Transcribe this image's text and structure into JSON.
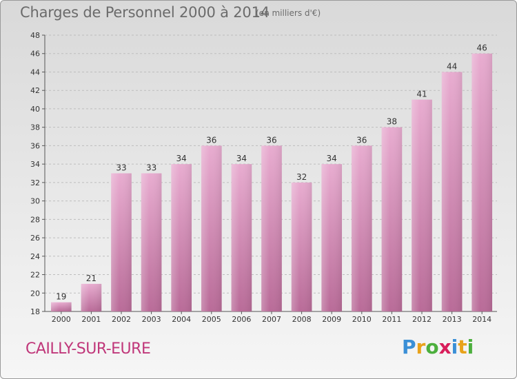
{
  "header": {
    "title": "Charges de Personnel 2000 à 2014",
    "unit": "(en milliers d'€)"
  },
  "footer": {
    "commune": "CAILLY-SUR-EURE",
    "logo_letters": [
      "P",
      "r",
      "o",
      "x",
      "i",
      "t",
      "i"
    ],
    "logo_colors": [
      "#3a8fd6",
      "#e8a21a",
      "#4caf3d",
      "#d81e5b",
      "#3a8fd6",
      "#e8a21a",
      "#4caf3d"
    ]
  },
  "chart_data": {
    "type": "bar",
    "title": "Charges de Personnel 2000 à 2014",
    "subtitle": "(en milliers d'€)",
    "xlabel": "",
    "ylabel": "",
    "categories": [
      "2000",
      "2001",
      "2002",
      "2003",
      "2004",
      "2005",
      "2006",
      "2007",
      "2008",
      "2009",
      "2010",
      "2011",
      "2012",
      "2013",
      "2014"
    ],
    "values": [
      19,
      21,
      33,
      33,
      34,
      36,
      34,
      36,
      32,
      34,
      36,
      38,
      41,
      44,
      46
    ],
    "ylim": [
      18,
      48
    ],
    "yticks": [
      18,
      20,
      22,
      24,
      26,
      28,
      30,
      32,
      34,
      36,
      38,
      40,
      42,
      44,
      46,
      48
    ],
    "grid": true,
    "bar_color": "#d88ab8",
    "legend": "none"
  }
}
